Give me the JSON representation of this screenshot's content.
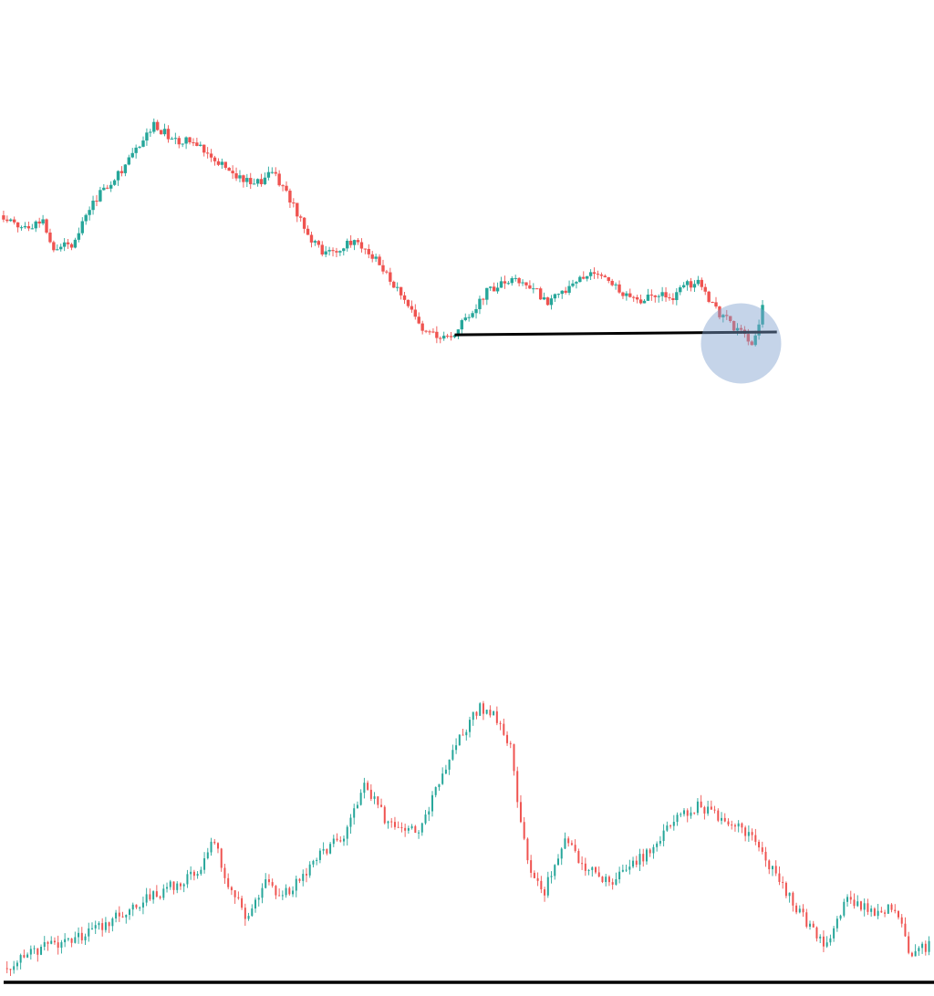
{
  "colors": {
    "background": "#ffffff",
    "up": "#26a69a",
    "down": "#ef5350",
    "level_line": "#000000",
    "highlight": "#7f9fcf"
  },
  "chart_data": [
    {
      "type": "candlestick",
      "title": "",
      "grid": false,
      "axes_visible": false,
      "ylim": [
        0,
        100
      ],
      "candles_from": [
        0,
        82
      ],
      "close_path": [
        [
          0,
          66
        ],
        [
          6,
          62
        ],
        [
          12,
          64
        ],
        [
          15,
          55
        ],
        [
          20,
          56
        ],
        [
          26,
          71
        ],
        [
          31,
          78
        ],
        [
          36,
          85
        ],
        [
          43,
          98
        ],
        [
          50,
          91
        ],
        [
          54,
          93
        ],
        [
          60,
          86
        ],
        [
          66,
          80
        ],
        [
          71,
          76
        ],
        [
          76,
          82
        ],
        [
          79,
          76
        ],
        [
          83,
          67
        ],
        [
          87,
          58
        ],
        [
          91,
          52
        ],
        [
          96,
          55
        ],
        [
          100,
          57
        ],
        [
          105,
          50
        ],
        [
          109,
          43
        ],
        [
          114,
          34
        ],
        [
          118,
          25
        ],
        [
          122,
          24
        ],
        [
          126,
          23
        ],
        [
          131,
          31
        ],
        [
          136,
          39
        ],
        [
          142,
          43
        ],
        [
          147,
          42
        ],
        [
          153,
          36
        ],
        [
          159,
          40
        ],
        [
          164,
          46
        ],
        [
          169,
          44
        ],
        [
          174,
          39
        ],
        [
          179,
          36
        ],
        [
          184,
          39
        ],
        [
          188,
          37
        ],
        [
          191,
          41
        ],
        [
          195,
          43
        ],
        [
          199,
          34
        ],
        [
          204,
          28
        ],
        [
          207,
          25
        ],
        [
          210,
          19
        ],
        [
          213,
          33
        ]
      ],
      "levels": [
        {
          "from": [
            127,
            24
          ],
          "to": [
            217,
            25
          ]
        }
      ],
      "highlight": {
        "x": 207,
        "y": 21
      }
    },
    {
      "type": "candlestick",
      "title": "",
      "grid": false,
      "axes_visible": false,
      "ylim": [
        0,
        100
      ],
      "candles_from": [
        0,
        0
      ],
      "close_path": [
        [
          0,
          4
        ],
        [
          12,
          10
        ],
        [
          25,
          14
        ],
        [
          37,
          21
        ],
        [
          47,
          26
        ],
        [
          58,
          32
        ],
        [
          62,
          41
        ],
        [
          66,
          27
        ],
        [
          72,
          18
        ],
        [
          77,
          28
        ],
        [
          82,
          24
        ],
        [
          90,
          33
        ],
        [
          101,
          43
        ],
        [
          106,
          56
        ],
        [
          113,
          45
        ],
        [
          122,
          42
        ],
        [
          127,
          54
        ],
        [
          132,
          67
        ],
        [
          140,
          78
        ],
        [
          144,
          76
        ],
        [
          149,
          66
        ],
        [
          152,
          45
        ],
        [
          155,
          31
        ],
        [
          159,
          26
        ],
        [
          165,
          41
        ],
        [
          170,
          33
        ],
        [
          178,
          28
        ],
        [
          184,
          34
        ],
        [
          191,
          37
        ],
        [
          197,
          47
        ],
        [
          204,
          50
        ],
        [
          212,
          46
        ],
        [
          220,
          41
        ],
        [
          227,
          30
        ],
        [
          234,
          20
        ],
        [
          241,
          10
        ],
        [
          248,
          24
        ],
        [
          255,
          20
        ],
        [
          262,
          21
        ],
        [
          267,
          7
        ],
        [
          272,
          11
        ]
      ],
      "levels": [
        {
          "from": [
            0,
            0
          ],
          "to": [
            272,
            0
          ]
        }
      ]
    }
  ]
}
